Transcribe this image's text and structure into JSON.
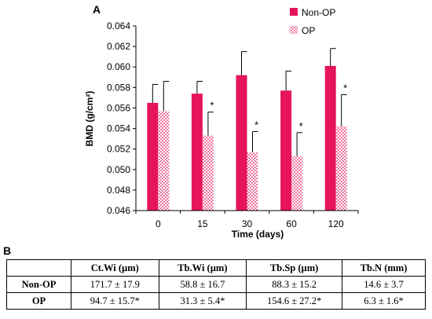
{
  "chart_data": {
    "type": "bar",
    "panel_label": "A",
    "xlabel": "Time (days)",
    "ylabel": "BMD (g/cm²)",
    "categories": [
      "0",
      "15",
      "30",
      "60",
      "120"
    ],
    "ylim": [
      0.046,
      0.064
    ],
    "yticks": [
      "0.046",
      "0.048",
      "0.050",
      "0.052",
      "0.054",
      "0.056",
      "0.058",
      "0.060",
      "0.062",
      "0.064"
    ],
    "series": [
      {
        "name": "Non-OP",
        "color": "#e6145a",
        "values": [
          0.0565,
          0.0574,
          0.0592,
          0.0577,
          0.0601
        ],
        "errors": [
          0.0018,
          0.0012,
          0.0023,
          0.0019,
          0.0017
        ]
      },
      {
        "name": "OP",
        "color": "#e6145a",
        "pattern": "dotted",
        "values": [
          0.0557,
          0.0533,
          0.0517,
          0.0513,
          0.0542
        ],
        "errors": [
          0.0029,
          0.0023,
          0.002,
          0.0023,
          0.0031
        ],
        "significance": [
          "",
          "*",
          "*",
          "*",
          "*"
        ]
      }
    ],
    "legend_position": "top-right"
  },
  "table": {
    "panel_label": "B",
    "headers": [
      "",
      "Ct.Wi (µm)",
      "Tb.Wi (µm)",
      "Tb.Sp (µm)",
      "Tb.N (mm)"
    ],
    "rows": [
      {
        "label": "Non-OP",
        "cells": [
          "171.7 ± 17.9",
          "58.8 ± 16.7",
          "88.3 ± 15.2",
          "14.6 ± 3.7"
        ]
      },
      {
        "label": "OP",
        "cells": [
          "94.7 ± 15.7*",
          "31.3 ± 5.4*",
          "154.6 ± 27.2*",
          "6.3 ± 1.6*"
        ]
      }
    ]
  }
}
